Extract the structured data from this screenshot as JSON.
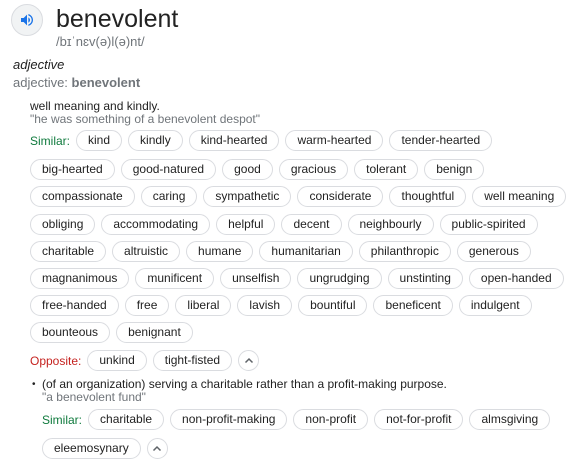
{
  "entry": {
    "word": "benevolent",
    "phonetic": "/bɪˈnɛv(ə)l(ə)nt/",
    "pos_italic": "adjective",
    "pos_label": "adjective: ",
    "pos_word": "benevolent"
  },
  "sense1": {
    "definition": "well meaning and kindly.",
    "example": "\"he was something of a benevolent despot\"",
    "similar_label": "Similar:",
    "similar": [
      "kind",
      "kindly",
      "kind-hearted",
      "warm-hearted",
      "tender-hearted",
      "big-hearted",
      "good-natured",
      "good",
      "gracious",
      "tolerant",
      "benign",
      "compassionate",
      "caring",
      "sympathetic",
      "considerate",
      "thoughtful",
      "well meaning",
      "obliging",
      "accommodating",
      "helpful",
      "decent",
      "neighbourly",
      "public-spirited",
      "charitable",
      "altruistic",
      "humane",
      "humanitarian",
      "philanthropic",
      "generous",
      "magnanimous",
      "munificent",
      "unselfish",
      "ungrudging",
      "unstinting",
      "open-handed",
      "free-handed",
      "free",
      "liberal",
      "lavish",
      "bountiful",
      "beneficent",
      "indulgent",
      "bounteous",
      "benignant"
    ],
    "opposite_label": "Opposite:",
    "opposite": [
      "unkind",
      "tight-fisted"
    ]
  },
  "sense2": {
    "bullet": "•",
    "definition": "(of an organization) serving a charitable rather than a profit-making purpose.",
    "example": "\"a benevolent fund\"",
    "similar_label": "Similar:",
    "similar": [
      "charitable",
      "non-profit-making",
      "non-profit",
      "not-for-profit",
      "almsgiving",
      "eleemosynary"
    ]
  },
  "colors": {
    "similar_label": "#0f7a3d",
    "opposite_label": "#c5221f",
    "speaker_icon": "#1a73e8"
  },
  "icons": {
    "speaker": "speaker-icon",
    "collapse": "chevron-up-icon"
  }
}
